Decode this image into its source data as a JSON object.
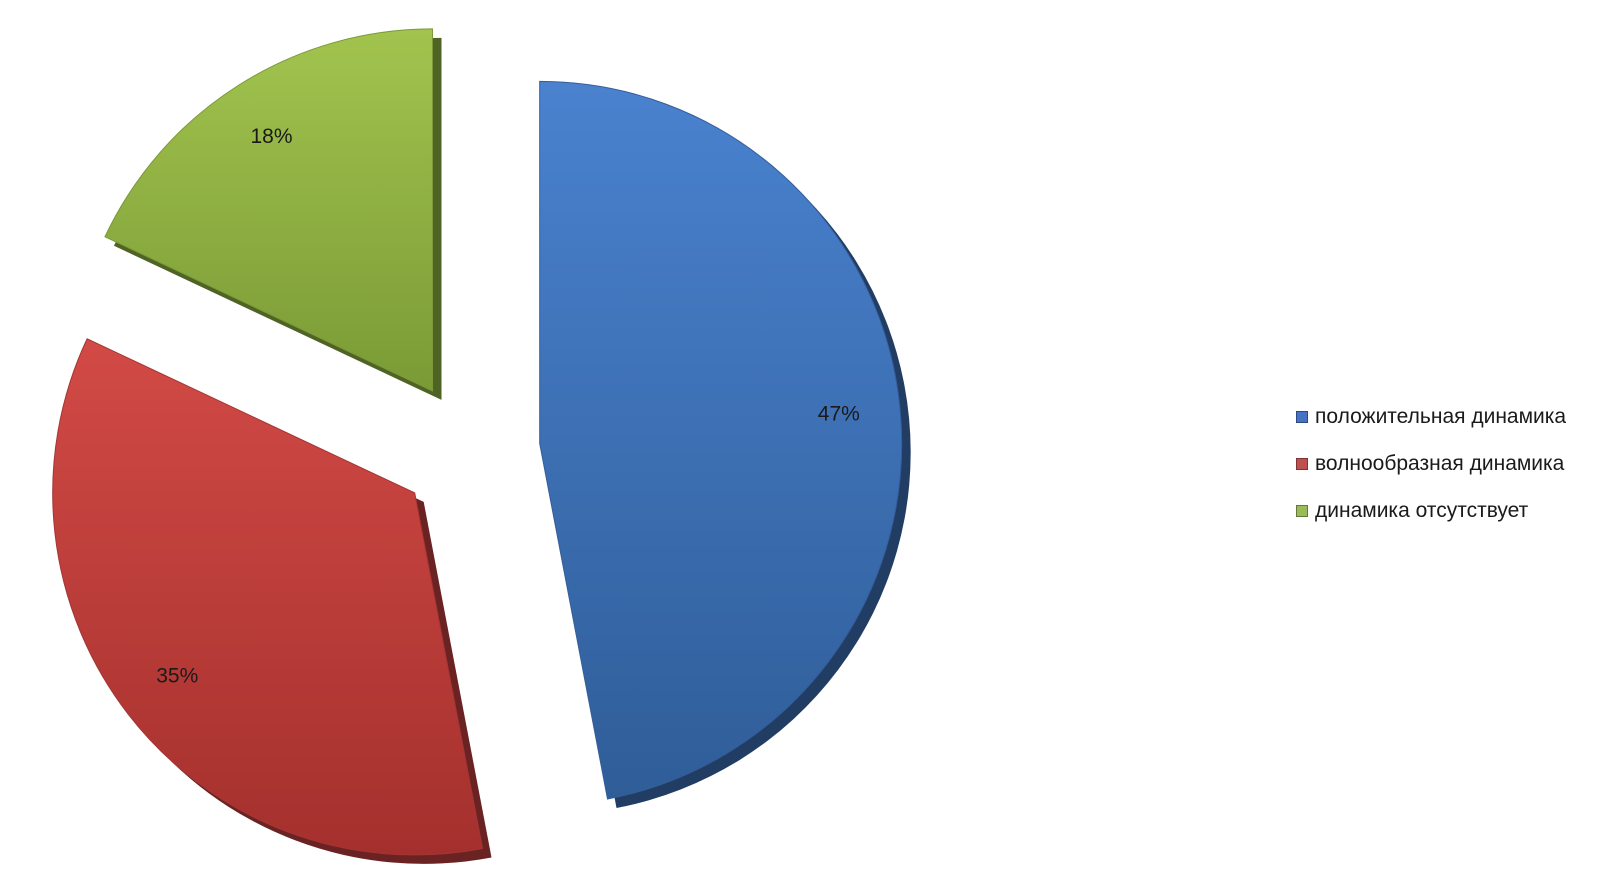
{
  "chart_data": {
    "type": "pie",
    "title": "",
    "categories": [
      "положительная динамика",
      "волнообразная динамика",
      "динамика отсутствует"
    ],
    "values": [
      47,
      35,
      18
    ],
    "labels": [
      "47%",
      "35%",
      "18%"
    ],
    "colors": [
      "#3d6fb5",
      "#c0403e",
      "#8fb443"
    ],
    "exploded": true,
    "style": "3d",
    "legend_position": "right"
  },
  "legend": {
    "items": [
      {
        "label": "положительная динамика",
        "color": "#4472c4"
      },
      {
        "label": "волнообразная динамика",
        "color": "#c0504d"
      },
      {
        "label": "динамика отсутствует",
        "color": "#9bbb59"
      }
    ]
  }
}
